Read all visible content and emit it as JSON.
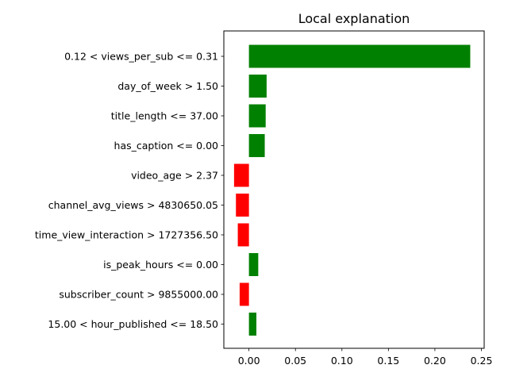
{
  "chart_data": {
    "type": "bar",
    "orientation": "horizontal",
    "title": "Local explanation",
    "xlabel": "",
    "ylabel": "",
    "grid": false,
    "xlim": [
      -0.027,
      0.253
    ],
    "xticks": [
      0.0,
      0.05,
      0.1,
      0.15,
      0.2,
      0.25
    ],
    "xtick_labels": [
      "0.00",
      "0.05",
      "0.10",
      "0.15",
      "0.20",
      "0.25"
    ],
    "positive_color": "#008000",
    "negative_color": "#ff0000",
    "categories": [
      "0.12 < views_per_sub <= 0.31",
      "day_of_week > 1.50",
      "title_length <= 37.00",
      "has_caption <= 0.00",
      "video_age > 2.37",
      "channel_avg_views > 4830650.05",
      "time_view_interaction > 1727356.50",
      "is_peak_hours <= 0.00",
      "subscriber_count > 9855000.00",
      "15.00 < hour_published <= 18.50"
    ],
    "values": [
      0.238,
      0.019,
      0.018,
      0.017,
      -0.016,
      -0.014,
      -0.012,
      0.01,
      -0.01,
      0.008
    ]
  }
}
